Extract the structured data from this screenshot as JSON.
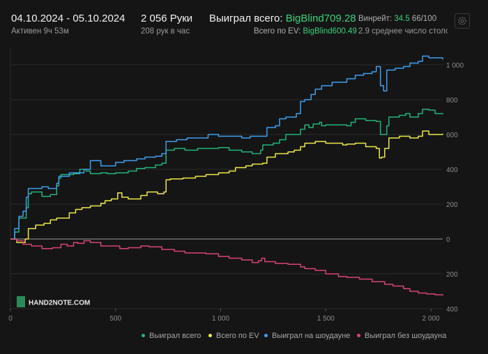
{
  "header": {
    "date_range": "04.10.2024 - 05.10.2024",
    "active_time": "Активен 9ч 53м",
    "hands": "2 056 Руки",
    "hands_per_hour": "208 рук в час",
    "won_label": "Выиграл всего:",
    "won_value": "BigBlind709.28",
    "ev_label": "Всего по EV:",
    "ev_value": "BigBlind600.49",
    "winrate_label": "Винрейт:",
    "winrate_value": "34.5",
    "winrate_extra": "66/100",
    "avg_tables": "2.9 среднее число столов"
  },
  "logo": {
    "text": "HAND2NOTE.COM"
  },
  "colors": {
    "won_total": "#21b57a",
    "ev_total": "#eeea4a",
    "showdown": "#3f9ff0",
    "no_showdown": "#d94474",
    "zero_line": "#9a9a9a",
    "grid": "#2c2c2c"
  },
  "chart_data": {
    "type": "line",
    "xlim": [
      0,
      2056
    ],
    "ylim": [
      -400,
      1100
    ],
    "x_ticks": [
      0,
      500,
      1000,
      1500,
      2000
    ],
    "x_tick_labels": [
      "0",
      "500",
      "1 000",
      "1 500",
      "2 000"
    ],
    "y_ticks": [
      -400,
      -200,
      0,
      200,
      400,
      600,
      800,
      1000
    ],
    "y_tick_labels": [
      "400",
      "200",
      "0",
      "200",
      "400",
      "600",
      "800",
      "1 000"
    ],
    "grid": true,
    "legend_position": "bottom-right",
    "series": [
      {
        "name": "Выиграл всего",
        "color_key": "won_total",
        "points": [
          [
            0,
            0
          ],
          [
            20,
            40
          ],
          [
            40,
            120
          ],
          [
            60,
            120
          ],
          [
            75,
            180
          ],
          [
            85,
            260
          ],
          [
            100,
            270
          ],
          [
            150,
            245
          ],
          [
            190,
            255
          ],
          [
            220,
            305
          ],
          [
            230,
            350
          ],
          [
            240,
            370
          ],
          [
            300,
            375
          ],
          [
            330,
            400
          ],
          [
            360,
            390
          ],
          [
            380,
            375
          ],
          [
            430,
            380
          ],
          [
            460,
            375
          ],
          [
            500,
            380
          ],
          [
            560,
            390
          ],
          [
            600,
            405
          ],
          [
            640,
            410
          ],
          [
            690,
            425
          ],
          [
            720,
            435
          ],
          [
            740,
            510
          ],
          [
            780,
            520
          ],
          [
            830,
            510
          ],
          [
            890,
            520
          ],
          [
            940,
            520
          ],
          [
            990,
            525
          ],
          [
            1040,
            510
          ],
          [
            1100,
            500
          ],
          [
            1150,
            490
          ],
          [
            1190,
            510
          ],
          [
            1200,
            540
          ],
          [
            1250,
            550
          ],
          [
            1280,
            570
          ],
          [
            1310,
            600
          ],
          [
            1360,
            600
          ],
          [
            1380,
            630
          ],
          [
            1400,
            655
          ],
          [
            1420,
            640
          ],
          [
            1440,
            660
          ],
          [
            1470,
            670
          ],
          [
            1480,
            650
          ],
          [
            1500,
            655
          ],
          [
            1550,
            655
          ],
          [
            1600,
            650
          ],
          [
            1620,
            670
          ],
          [
            1640,
            690
          ],
          [
            1690,
            680
          ],
          [
            1740,
            675
          ],
          [
            1760,
            600
          ],
          [
            1780,
            600
          ],
          [
            1790,
            650
          ],
          [
            1800,
            700
          ],
          [
            1850,
            710
          ],
          [
            1880,
            720
          ],
          [
            1900,
            700
          ],
          [
            1940,
            720
          ],
          [
            1960,
            745
          ],
          [
            1990,
            740
          ],
          [
            2020,
            720
          ],
          [
            2056,
            715
          ]
        ]
      },
      {
        "name": "Всего по EV",
        "color_key": "ev_total",
        "points": [
          [
            0,
            0
          ],
          [
            30,
            -20
          ],
          [
            70,
            0
          ],
          [
            85,
            60
          ],
          [
            120,
            80
          ],
          [
            160,
            90
          ],
          [
            190,
            110
          ],
          [
            220,
            120
          ],
          [
            280,
            150
          ],
          [
            310,
            170
          ],
          [
            340,
            180
          ],
          [
            380,
            190
          ],
          [
            430,
            205
          ],
          [
            450,
            220
          ],
          [
            480,
            230
          ],
          [
            510,
            265
          ],
          [
            530,
            240
          ],
          [
            560,
            230
          ],
          [
            590,
            230
          ],
          [
            620,
            250
          ],
          [
            650,
            270
          ],
          [
            700,
            260
          ],
          [
            730,
            270
          ],
          [
            740,
            340
          ],
          [
            760,
            345
          ],
          [
            820,
            350
          ],
          [
            880,
            360
          ],
          [
            930,
            370
          ],
          [
            990,
            380
          ],
          [
            1040,
            390
          ],
          [
            1070,
            410
          ],
          [
            1120,
            420
          ],
          [
            1150,
            430
          ],
          [
            1200,
            435
          ],
          [
            1220,
            470
          ],
          [
            1260,
            490
          ],
          [
            1320,
            500
          ],
          [
            1350,
            510
          ],
          [
            1380,
            530
          ],
          [
            1400,
            550
          ],
          [
            1450,
            560
          ],
          [
            1500,
            550
          ],
          [
            1540,
            550
          ],
          [
            1580,
            540
          ],
          [
            1600,
            545
          ],
          [
            1640,
            550
          ],
          [
            1690,
            530
          ],
          [
            1740,
            520
          ],
          [
            1755,
            465
          ],
          [
            1765,
            470
          ],
          [
            1780,
            520
          ],
          [
            1800,
            580
          ],
          [
            1850,
            590
          ],
          [
            1880,
            590
          ],
          [
            1900,
            580
          ],
          [
            1940,
            590
          ],
          [
            1960,
            620
          ],
          [
            1990,
            600
          ],
          [
            2020,
            600
          ],
          [
            2056,
            605
          ]
        ]
      },
      {
        "name": "Выиграл на шоудауне",
        "color_key": "showdown",
        "points": [
          [
            0,
            0
          ],
          [
            20,
            60
          ],
          [
            40,
            130
          ],
          [
            60,
            160
          ],
          [
            75,
            240
          ],
          [
            85,
            290
          ],
          [
            150,
            300
          ],
          [
            180,
            290
          ],
          [
            220,
            320
          ],
          [
            230,
            360
          ],
          [
            280,
            380
          ],
          [
            330,
            380
          ],
          [
            350,
            400
          ],
          [
            380,
            450
          ],
          [
            430,
            420
          ],
          [
            470,
            420
          ],
          [
            500,
            440
          ],
          [
            540,
            450
          ],
          [
            600,
            460
          ],
          [
            640,
            470
          ],
          [
            690,
            475
          ],
          [
            720,
            490
          ],
          [
            740,
            560
          ],
          [
            790,
            570
          ],
          [
            840,
            580
          ],
          [
            890,
            580
          ],
          [
            940,
            600
          ],
          [
            990,
            590
          ],
          [
            1040,
            590
          ],
          [
            1100,
            580
          ],
          [
            1140,
            590
          ],
          [
            1200,
            590
          ],
          [
            1220,
            640
          ],
          [
            1260,
            650
          ],
          [
            1280,
            690
          ],
          [
            1310,
            700
          ],
          [
            1360,
            720
          ],
          [
            1380,
            790
          ],
          [
            1400,
            800
          ],
          [
            1430,
            830
          ],
          [
            1450,
            860
          ],
          [
            1480,
            880
          ],
          [
            1530,
            900
          ],
          [
            1560,
            900
          ],
          [
            1600,
            920
          ],
          [
            1640,
            940
          ],
          [
            1680,
            950
          ],
          [
            1720,
            960
          ],
          [
            1740,
            990
          ],
          [
            1760,
            880
          ],
          [
            1775,
            850
          ],
          [
            1790,
            970
          ],
          [
            1830,
            980
          ],
          [
            1870,
            990
          ],
          [
            1900,
            1010
          ],
          [
            1940,
            1020
          ],
          [
            1960,
            1050
          ],
          [
            1990,
            1040
          ],
          [
            2020,
            1040
          ],
          [
            2056,
            1030
          ]
        ]
      },
      {
        "name": "Выиграл без шоудауна",
        "color_key": "no_showdown",
        "points": [
          [
            0,
            0
          ],
          [
            30,
            -10
          ],
          [
            60,
            -30
          ],
          [
            100,
            -40
          ],
          [
            150,
            -55
          ],
          [
            200,
            -50
          ],
          [
            240,
            -30
          ],
          [
            270,
            -40
          ],
          [
            300,
            -20
          ],
          [
            320,
            -25
          ],
          [
            350,
            -10
          ],
          [
            380,
            -20
          ],
          [
            430,
            -40
          ],
          [
            480,
            -40
          ],
          [
            520,
            -55
          ],
          [
            560,
            -50
          ],
          [
            620,
            -40
          ],
          [
            660,
            -45
          ],
          [
            720,
            -60
          ],
          [
            780,
            -70
          ],
          [
            830,
            -80
          ],
          [
            880,
            -80
          ],
          [
            930,
            -85
          ],
          [
            990,
            -100
          ],
          [
            1040,
            -110
          ],
          [
            1100,
            -120
          ],
          [
            1150,
            -135
          ],
          [
            1180,
            -125
          ],
          [
            1195,
            -110
          ],
          [
            1210,
            -130
          ],
          [
            1260,
            -140
          ],
          [
            1320,
            -145
          ],
          [
            1380,
            -160
          ],
          [
            1400,
            -170
          ],
          [
            1450,
            -180
          ],
          [
            1500,
            -200
          ],
          [
            1560,
            -215
          ],
          [
            1600,
            -220
          ],
          [
            1660,
            -230
          ],
          [
            1720,
            -245
          ],
          [
            1780,
            -260
          ],
          [
            1820,
            -270
          ],
          [
            1870,
            -285
          ],
          [
            1900,
            -300
          ],
          [
            1940,
            -310
          ],
          [
            1980,
            -315
          ],
          [
            2020,
            -320
          ],
          [
            2056,
            -325
          ]
        ]
      }
    ]
  }
}
